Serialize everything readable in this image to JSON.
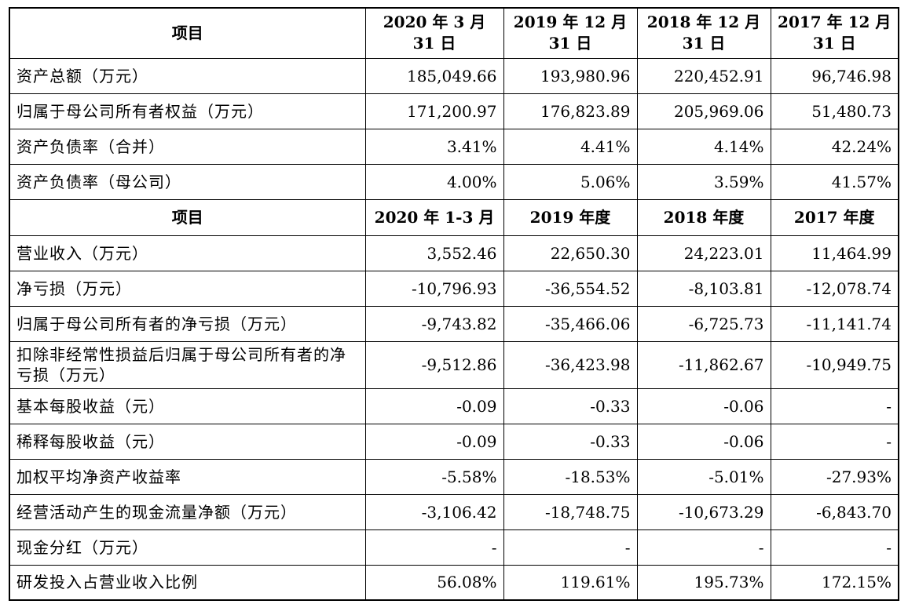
{
  "section1": {
    "header": [
      "项目",
      "2020 年 3 月 31 日",
      "2019 年 12 月 31 日",
      "2018 年 12 月 31 日",
      "2017 年 12 月 31 日"
    ],
    "rows": [
      {
        "label": "资产总额（万元）",
        "values": [
          "185,049.66",
          "193,980.96",
          "220,452.91",
          "96,746.98"
        ]
      },
      {
        "label": "归属于母公司所有者权益（万元）",
        "values": [
          "171,200.97",
          "176,823.89",
          "205,969.06",
          "51,480.73"
        ]
      },
      {
        "label": "资产负债率（合并）",
        "values": [
          "3.41%",
          "4.41%",
          "4.14%",
          "42.24%"
        ]
      },
      {
        "label": "资产负债率（母公司）",
        "values": [
          "4.00%",
          "5.06%",
          "3.59%",
          "41.57%"
        ]
      }
    ]
  },
  "section2": {
    "header": [
      "项目",
      "2020 年 1-3 月",
      "2019 年度",
      "2018 年度",
      "2017 年度"
    ],
    "rows": [
      {
        "label": "营业收入（万元）",
        "values": [
          "3,552.46",
          "22,650.30",
          "24,223.01",
          "11,464.99"
        ]
      },
      {
        "label": "净亏损（万元）",
        "values": [
          "-10,796.93",
          "-36,554.52",
          "-8,103.81",
          "-12,078.74"
        ]
      },
      {
        "label": "归属于母公司所有者的净亏损（万元）",
        "values": [
          "-9,743.82",
          "-35,466.06",
          "-6,725.73",
          "-11,141.74"
        ]
      },
      {
        "label": "扣除非经常性损益后归属于母公司所有者的净亏损（万元）",
        "values": [
          "-9,512.86",
          "-36,423.98",
          "-11,862.67",
          "-10,949.75"
        ]
      },
      {
        "label": "基本每股收益（元）",
        "values": [
          "-0.09",
          "-0.33",
          "-0.06",
          "-"
        ]
      },
      {
        "label": "稀释每股收益（元）",
        "values": [
          "-0.09",
          "-0.33",
          "-0.06",
          "-"
        ]
      },
      {
        "label": "加权平均净资产收益率",
        "values": [
          "-5.58%",
          "-18.53%",
          "-5.01%",
          "-27.93%"
        ]
      },
      {
        "label": "经营活动产生的现金流量净额（万元）",
        "values": [
          "-3,106.42",
          "-18,748.75",
          "-10,673.29",
          "-6,843.70"
        ]
      },
      {
        "label": "现金分红（万元）",
        "values": [
          "-",
          "-",
          "-",
          "-"
        ]
      },
      {
        "label": "研发投入占营业收入比例",
        "values": [
          "56.08%",
          "119.61%",
          "195.73%",
          "172.15%"
        ]
      }
    ]
  }
}
